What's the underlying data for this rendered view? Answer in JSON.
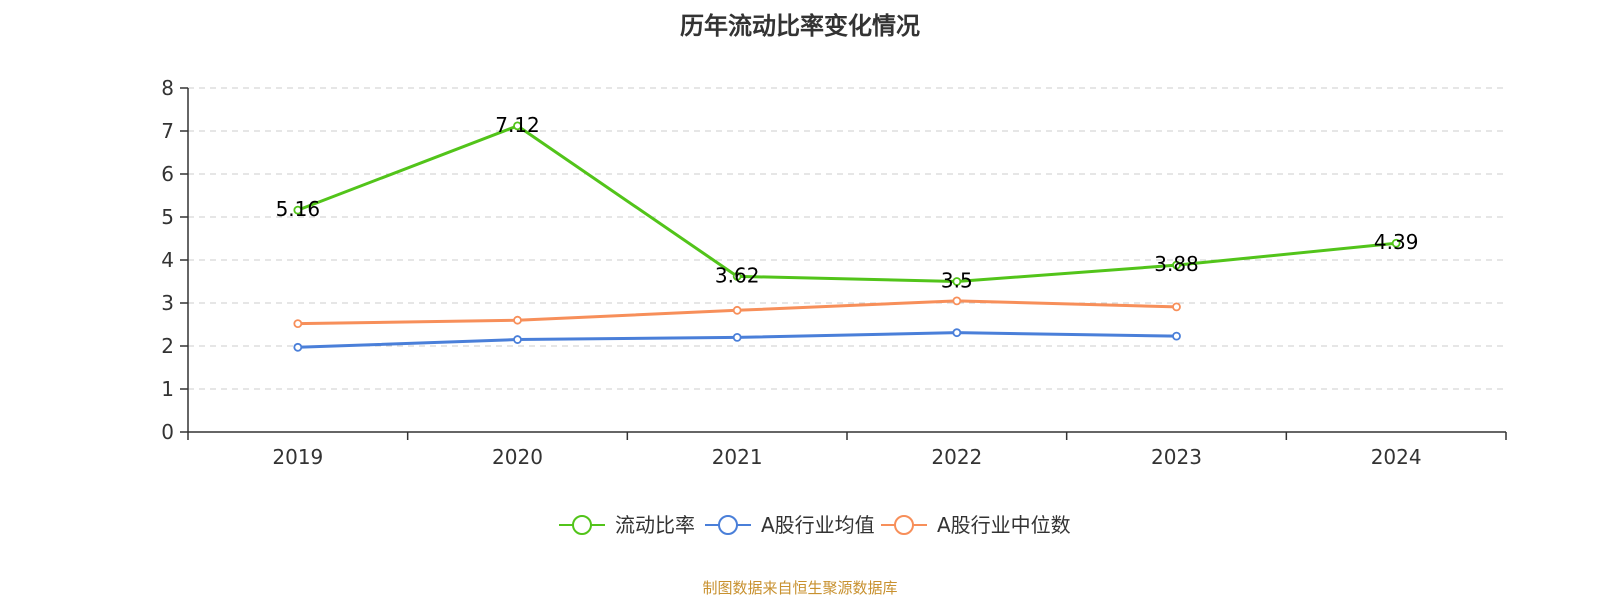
{
  "chart_data": {
    "type": "line",
    "title": "历年流动比率变化情况",
    "categories": [
      "2019",
      "2020",
      "2021",
      "2022",
      "2023",
      "2024"
    ],
    "ylim": [
      0,
      8
    ],
    "yticks": [
      0,
      1,
      2,
      3,
      4,
      5,
      6,
      7,
      8
    ],
    "grid": true,
    "legend_position": "bottom-center",
    "series": [
      {
        "name": "流动比率",
        "color": "#52c41a",
        "values": [
          5.16,
          7.12,
          3.62,
          3.5,
          3.88,
          4.39
        ],
        "labels": [
          "5.16",
          "7.12",
          "3.62",
          "3.5",
          "3.88",
          "4.39"
        ]
      },
      {
        "name": "A股行业均值",
        "color": "#4a7fd9",
        "values": [
          1.97,
          2.15,
          2.2,
          2.31,
          2.23,
          null
        ]
      },
      {
        "name": "A股行业中位数",
        "color": "#f78f5a",
        "values": [
          2.52,
          2.6,
          2.83,
          3.05,
          2.91,
          null
        ]
      }
    ]
  },
  "source_note": "制图数据来自恒生聚源数据库"
}
